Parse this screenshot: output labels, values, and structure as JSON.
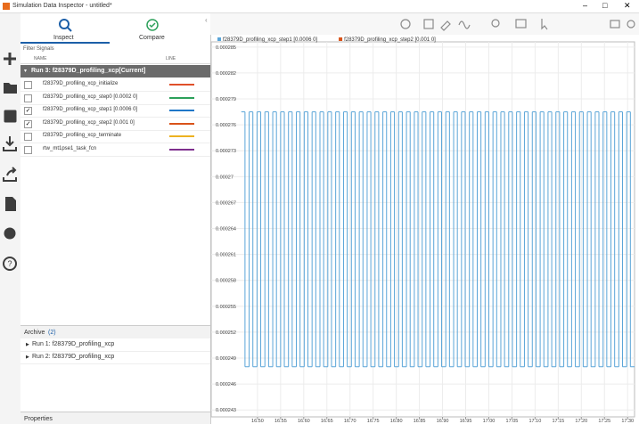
{
  "window": {
    "title": "Simulation Data Inspector - untitled*"
  },
  "tabs": [
    "Inspect",
    "Compare"
  ],
  "filter": "Filter Signals",
  "columns": [
    "NAME",
    "LINE"
  ],
  "current_run": "Run 3: f28379D_profiling_xcp[Current]",
  "signals": [
    {
      "name": "f28379D_profiling_xcp_initialize",
      "color": "#e0502a",
      "checked": false
    },
    {
      "name": "f28379D_profiling_xcp_step0 [0.0002 0]",
      "color": "#2ca05a",
      "checked": false
    },
    {
      "name": "f28379D_profiling_xcp_step1 [0.0006 0]",
      "color": "#1f77c8",
      "checked": true
    },
    {
      "name": "f28379D_profiling_xcp_step2 [0.001 0]",
      "color": "#d95319",
      "checked": true
    },
    {
      "name": "f28379D_profiling_xcp_terminate",
      "color": "#edb120",
      "checked": false
    },
    {
      "name": "rtw_mt1pse1_task_fcn",
      "color": "#7e2f8e",
      "checked": false
    }
  ],
  "archive": {
    "label": "Archive",
    "count": "(2)",
    "runs": [
      "Run 1: f28379D_profiling_xcp",
      "Run 2: f28379D_profiling_xcp"
    ]
  },
  "properties": "Properties",
  "chart_data": {
    "type": "line",
    "step": true,
    "grid": true,
    "x": [
      16.465,
      16.473,
      16.482,
      16.49,
      16.499,
      16.507,
      16.516,
      16.524,
      16.533,
      16.541,
      16.55,
      16.558,
      16.567,
      16.575,
      16.584,
      16.592,
      16.601,
      16.609,
      16.618,
      16.626,
      16.635,
      16.643,
      16.652,
      16.66,
      16.669,
      16.677,
      16.686,
      16.694,
      16.703,
      16.711,
      16.72,
      16.728,
      16.737,
      16.745,
      16.754,
      16.762,
      16.771,
      16.779,
      16.788,
      16.796,
      16.805,
      16.813,
      16.822,
      16.83,
      16.839,
      16.847,
      16.856,
      16.864,
      16.873,
      16.881,
      16.89,
      16.898,
      16.907,
      16.915,
      16.924,
      16.932,
      16.941,
      16.949,
      16.958,
      16.966,
      16.975,
      16.983,
      16.992,
      17.0,
      17.009,
      17.017,
      17.026,
      17.034,
      17.043,
      17.051,
      17.06,
      17.068,
      17.077,
      17.085,
      17.094,
      17.102,
      17.111,
      17.119,
      17.128,
      17.136,
      17.145,
      17.153,
      17.162,
      17.17,
      17.179,
      17.187,
      17.196,
      17.204,
      17.213,
      17.221,
      17.23,
      17.238,
      17.247,
      17.255,
      17.264,
      17.272,
      17.281,
      17.289,
      17.298,
      17.306
    ],
    "series": [
      {
        "name": "f28379D_profiling_xcp_step1 [0.0006 0]",
        "color": "#5aa5d8",
        "values": [
          0.0002775,
          0.000248,
          0.0002775,
          0.000248,
          0.0002775,
          0.000248,
          0.0002775,
          0.000248,
          0.0002775,
          0.000248,
          0.0002775,
          0.000248,
          0.0002775,
          0.000248,
          0.0002775,
          0.000248,
          0.0002775,
          0.000248,
          0.0002775,
          0.000248,
          0.0002775,
          0.000248,
          0.0002775,
          0.000248,
          0.0002775,
          0.000248,
          0.0002775,
          0.000248,
          0.0002775,
          0.000248,
          0.0002775,
          0.000248,
          0.0002775,
          0.000248,
          0.0002775,
          0.000248,
          0.0002775,
          0.000248,
          0.0002775,
          0.000248,
          0.0002775,
          0.000248,
          0.0002775,
          0.000248,
          0.0002775,
          0.000248,
          0.0002775,
          0.000248,
          0.0002775,
          0.000248,
          0.0002775,
          0.000248,
          0.0002775,
          0.000248,
          0.0002775,
          0.000248,
          0.0002775,
          0.000248,
          0.0002775,
          0.000248,
          0.0002775,
          0.000248,
          0.0002775,
          0.000248,
          0.0002775,
          0.000248,
          0.0002775,
          0.000248,
          0.0002775,
          0.000248,
          0.0002775,
          0.000248,
          0.0002775,
          0.000248,
          0.0002775,
          0.000248,
          0.0002775,
          0.000248,
          0.0002775,
          0.000248,
          0.0002775,
          0.000248,
          0.0002775,
          0.000248,
          0.0002775,
          0.000248,
          0.0002775,
          0.000248,
          0.0002775,
          0.000248,
          0.0002775,
          0.000248,
          0.0002775,
          0.000248,
          0.0002775,
          0.000248,
          0.0002775,
          0.000248,
          0.0002775,
          0.000248
        ]
      },
      {
        "name": "f28379D_profiling_xcp_step2 [0.001 0]",
        "color": "#d95319"
      }
    ],
    "xlim": [
      16.4,
      17.315
    ],
    "ylim": [
      0.0002422,
      0.0002856
    ],
    "xticks": [
      {
        "value": 16.5,
        "label": "16.50"
      },
      {
        "value": 16.55,
        "label": "16.55"
      },
      {
        "value": 16.6,
        "label": "16.60"
      },
      {
        "value": 16.65,
        "label": "16.65"
      },
      {
        "value": 16.7,
        "label": "16.70"
      },
      {
        "value": 16.75,
        "label": "16.75"
      },
      {
        "value": 16.8,
        "label": "16.80"
      },
      {
        "value": 16.85,
        "label": "16.85"
      },
      {
        "value": 16.9,
        "label": "16.90"
      },
      {
        "value": 16.95,
        "label": "16.95"
      },
      {
        "value": 17,
        "label": "17.00"
      },
      {
        "value": 17.05,
        "label": "17.05"
      },
      {
        "value": 17.1,
        "label": "17.10"
      },
      {
        "value": 17.15,
        "label": "17.15"
      },
      {
        "value": 17.2,
        "label": "17.20"
      },
      {
        "value": 17.25,
        "label": "17.25"
      },
      {
        "value": 17.3,
        "label": "17.30"
      }
    ],
    "yticks": [
      0.000285,
      0.000282,
      0.000279,
      0.000276,
      0.000273,
      0.00027,
      0.000267,
      0.000264,
      0.000261,
      0.000258,
      0.000255,
      0.000252,
      0.000249,
      0.000246,
      0.000243
    ]
  }
}
